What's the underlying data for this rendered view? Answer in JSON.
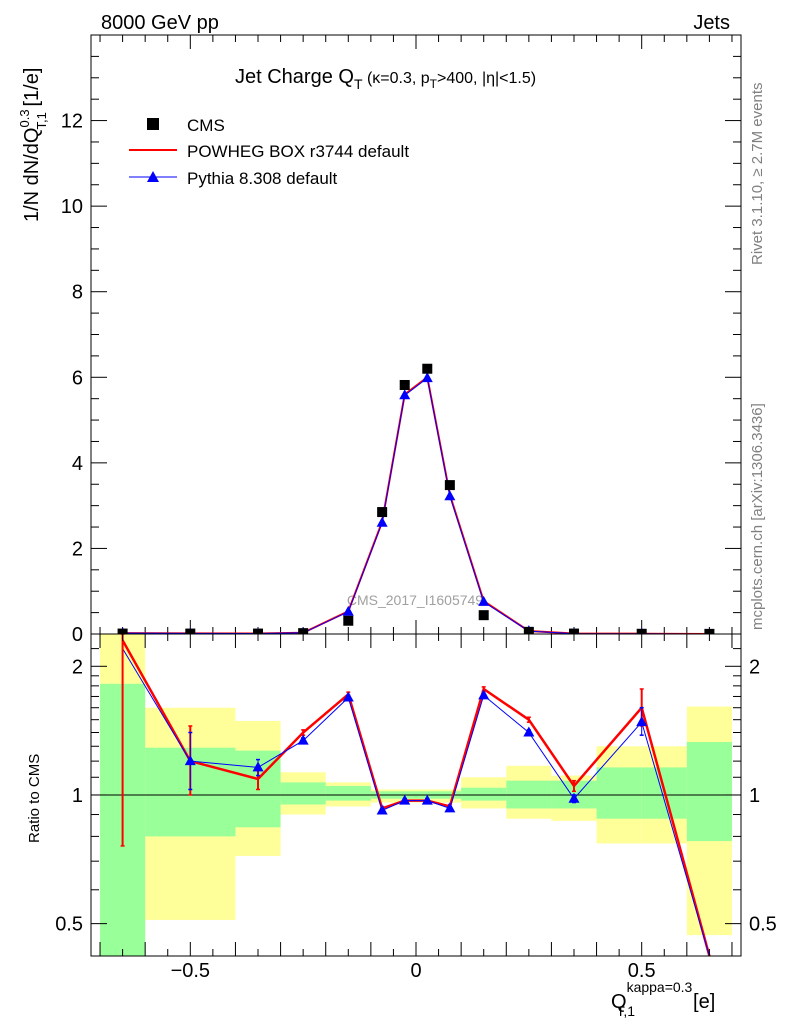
{
  "header": {
    "left": "8000 GeV pp",
    "right": "Jets"
  },
  "side_labels": {
    "rivet": "Rivet 3.1.10, ≥ 2.7M events",
    "mcplots": "mcplots.cern.ch [arXiv:1306.3436]"
  },
  "chart_data": [
    {
      "type": "scatter",
      "title_main": "Jet Charge Q",
      "title_sub": "T",
      "title_params": "(κ=0.3, p",
      "title_params_sub": "T",
      "title_params_rest": ">400, |η|<1.5)",
      "ylabel": "1/N dN/dQ",
      "ylabel_sup": "0.3",
      "ylabel_sub": "T,1",
      "ylabel_unit": "[1/e]",
      "xlim": [
        -0.72,
        0.72
      ],
      "ylim": [
        0,
        14.0
      ],
      "yticks": [
        0,
        2,
        4,
        6,
        8,
        10,
        12
      ],
      "ytick_labels": [
        "0",
        "2",
        "4",
        "6",
        "8",
        "10",
        "12"
      ],
      "watermark": "CMS_2017_I1605749",
      "legend": [
        {
          "name": "CMS",
          "marker": "square",
          "color": "#000000"
        },
        {
          "name": "POWHEG BOX r3744 default",
          "marker": "line",
          "color": "#ff0000"
        },
        {
          "name": "Pythia 8.308 default",
          "marker": "triangle",
          "color": "#0000ff"
        }
      ],
      "x": [
        -0.65,
        -0.5,
        -0.35,
        -0.25,
        -0.15,
        -0.075,
        -0.025,
        0.025,
        0.075,
        0.15,
        0.25,
        0.35,
        0.5,
        0.65
      ],
      "series": [
        {
          "name": "CMS",
          "values": [
            0.01,
            0.01,
            0.01,
            0.02,
            0.31,
            2.85,
            5.82,
            6.2,
            3.48,
            0.44,
            0.05,
            0.01,
            0.005,
            0.003
          ]
        },
        {
          "name": "POWHEG BOX r3744 default",
          "values": [
            0.02,
            0.013,
            0.012,
            0.028,
            0.53,
            2.62,
            5.6,
            6.0,
            3.25,
            0.77,
            0.07,
            0.011,
            0.008,
            0.0
          ]
        },
        {
          "name": "Pythia 8.308 default",
          "values": [
            0.02,
            0.013,
            0.012,
            0.027,
            0.52,
            2.6,
            5.58,
            5.98,
            3.22,
            0.75,
            0.068,
            0.01,
            0.008,
            0.0
          ]
        }
      ]
    },
    {
      "type": "line",
      "ylabel": "Ratio to CMS",
      "xlabel": "Q",
      "xlabel_sup": "kappa=0.3",
      "xlabel_sub": "T,1",
      "xlabel_unit": "[e]",
      "xlim": [
        -0.72,
        0.72
      ],
      "ylim": [
        0.42,
        2.38
      ],
      "yscale": "log",
      "xticks": [
        -0.5,
        0,
        0.5
      ],
      "xtick_labels": [
        "−0.5",
        "0",
        "0.5"
      ],
      "yticks": [
        0.5,
        1,
        2
      ],
      "ytick_labels": [
        "0.5",
        "1",
        "2"
      ],
      "bands": [
        {
          "x0": -0.7,
          "x1": -0.6,
          "yellow": [
            0.42,
            2.38
          ],
          "green": [
            0.42,
            1.82
          ]
        },
        {
          "x0": -0.6,
          "x1": -0.4,
          "yellow": [
            0.51,
            1.6
          ],
          "green": [
            0.8,
            1.29
          ]
        },
        {
          "x0": -0.4,
          "x1": -0.3,
          "yellow": [
            0.72,
            1.49
          ],
          "green": [
            0.84,
            1.27
          ]
        },
        {
          "x0": -0.3,
          "x1": -0.2,
          "yellow": [
            0.9,
            1.13
          ],
          "green": [
            0.95,
            1.07
          ]
        },
        {
          "x0": -0.2,
          "x1": -0.1,
          "yellow": [
            0.94,
            1.07
          ],
          "green": [
            0.97,
            1.05
          ]
        },
        {
          "x0": -0.1,
          "x1": 0.1,
          "yellow": [
            0.96,
            1.03
          ],
          "green": [
            0.98,
            1.02
          ]
        },
        {
          "x0": 0.1,
          "x1": 0.2,
          "yellow": [
            0.93,
            1.1
          ],
          "green": [
            0.97,
            1.04
          ]
        },
        {
          "x0": 0.2,
          "x1": 0.3,
          "yellow": [
            0.88,
            1.17
          ],
          "green": [
            0.93,
            1.08
          ]
        },
        {
          "x0": 0.3,
          "x1": 0.4,
          "yellow": [
            0.87,
            1.11
          ],
          "green": [
            0.93,
            1.08
          ]
        },
        {
          "x0": 0.4,
          "x1": 0.5,
          "yellow": [
            0.77,
            1.3
          ],
          "green": [
            0.88,
            1.16
          ]
        },
        {
          "x0": 0.5,
          "x1": 0.6,
          "yellow": [
            0.77,
            1.3
          ],
          "green": [
            0.88,
            1.16
          ]
        },
        {
          "x0": 0.6,
          "x1": 0.7,
          "yellow": [
            0.47,
            1.61
          ],
          "green": [
            0.78,
            1.33
          ]
        }
      ],
      "x": [
        -0.65,
        -0.5,
        -0.35,
        -0.25,
        -0.15,
        -0.075,
        -0.025,
        0.025,
        0.075,
        0.15,
        0.25,
        0.35,
        0.5,
        0.65
      ],
      "series": [
        {
          "name": "POWHEG BOX r3744 default",
          "values": [
            2.3,
            1.2,
            1.09,
            1.4,
            1.72,
            0.93,
            0.97,
            0.97,
            0.94,
            1.77,
            1.5,
            1.05,
            1.6,
            0.2
          ],
          "err_low": [
            0.76,
            1.0,
            1.03,
            1.38,
            1.7,
            0.92,
            0.96,
            0.96,
            0.93,
            1.75,
            1.48,
            1.02,
            1.45,
            null
          ],
          "err_high": [
            2.38,
            1.45,
            1.14,
            1.42,
            1.74,
            0.94,
            0.98,
            0.98,
            0.95,
            1.79,
            1.52,
            1.08,
            1.77,
            null
          ]
        },
        {
          "name": "Pythia 8.308 default",
          "values": [
            2.2,
            1.2,
            1.16,
            1.34,
            1.69,
            0.92,
            0.97,
            0.97,
            0.93,
            1.71,
            1.4,
            0.98,
            1.48,
            0.2
          ],
          "err_low": [
            null,
            1.03,
            1.11,
            1.32,
            1.67,
            0.91,
            0.96,
            0.96,
            0.92,
            1.69,
            1.38,
            0.96,
            1.38,
            null
          ],
          "err_high": [
            null,
            1.4,
            1.21,
            1.36,
            1.71,
            0.93,
            0.98,
            0.98,
            0.94,
            1.73,
            1.42,
            1.0,
            1.6,
            null
          ]
        }
      ]
    }
  ]
}
